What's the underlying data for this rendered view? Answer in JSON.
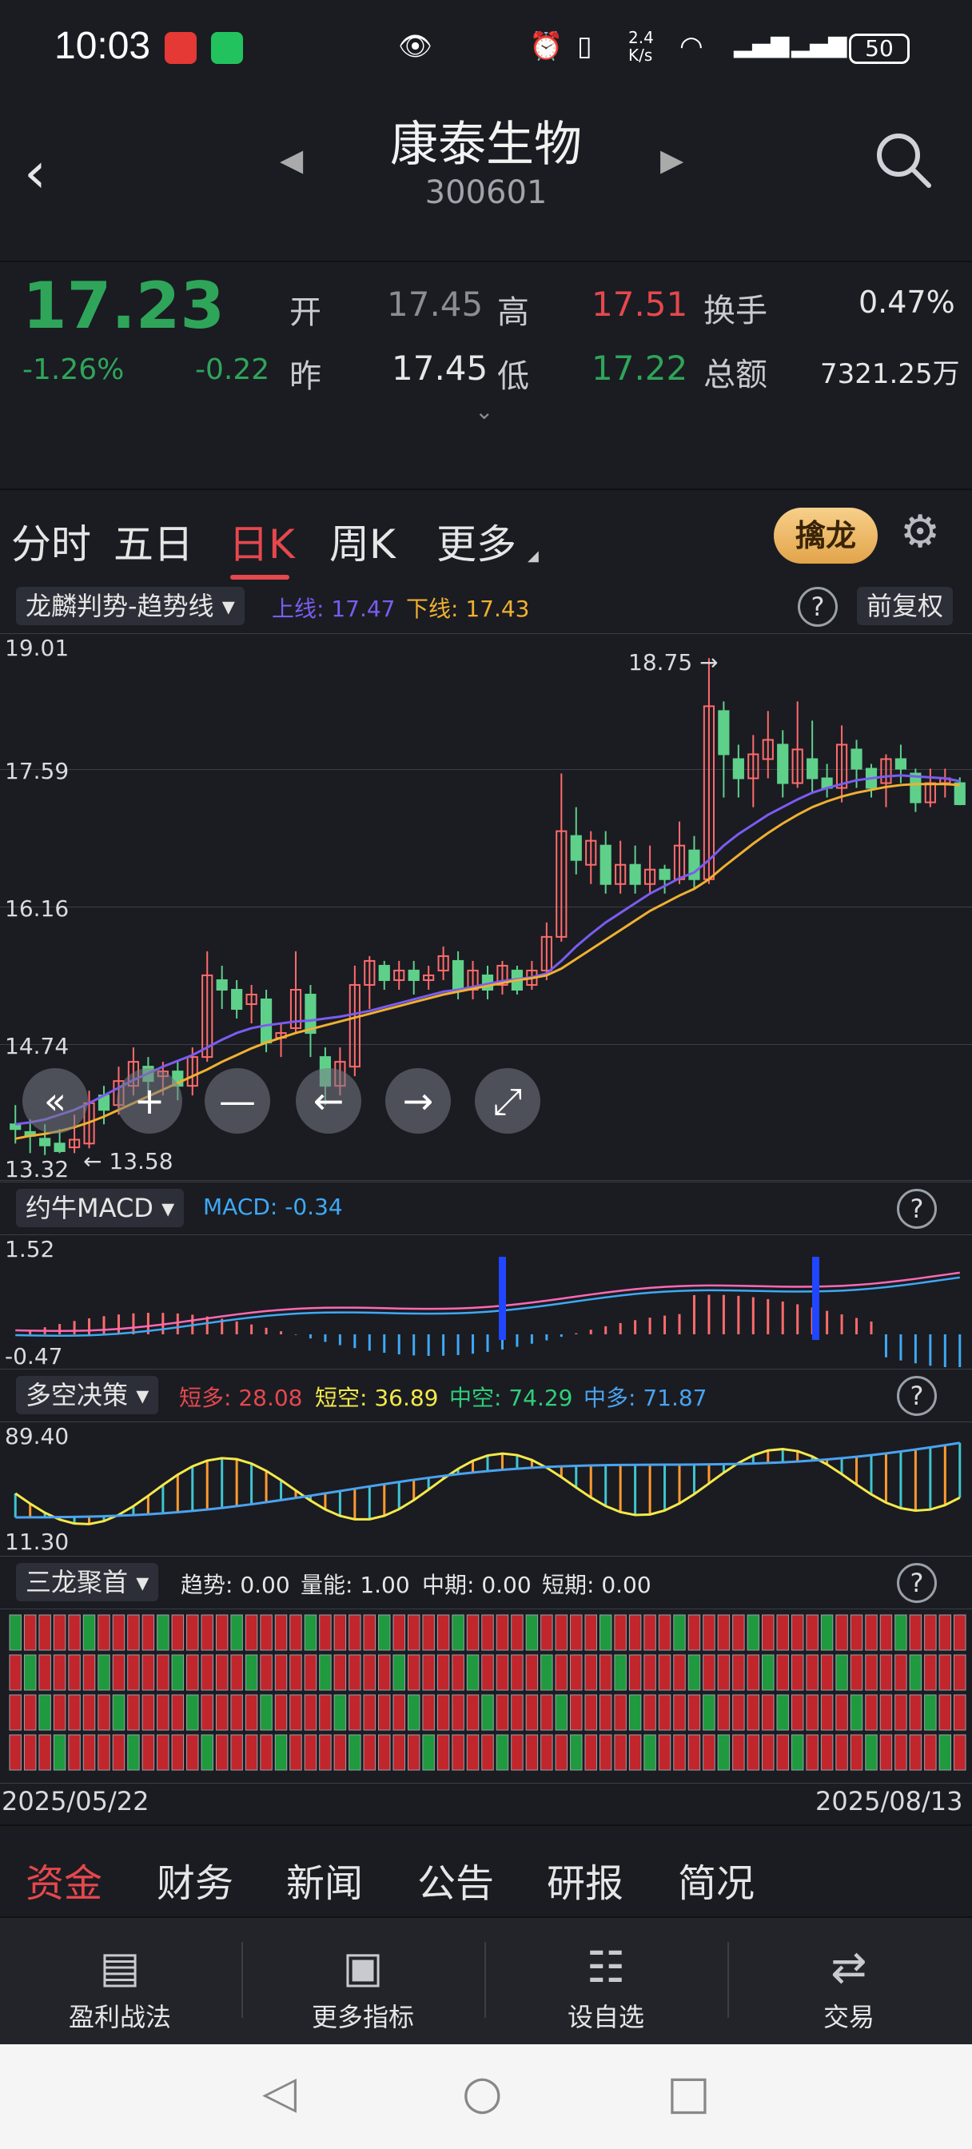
{
  "status_bar": {
    "time": "10:03",
    "network_speed": "2.4\nK/s",
    "battery": "50"
  },
  "header": {
    "stock_name": "康泰生物",
    "stock_code": "300601"
  },
  "quote": {
    "price": "17.23",
    "change_pct": "-1.26%",
    "change": "-0.22",
    "open_label": "开",
    "open": "17.45",
    "high_label": "高",
    "high": "17.51",
    "turnover_label": "换手",
    "turnover": "0.47%",
    "prev_label": "昨",
    "prev": "17.45",
    "low_label": "低",
    "low": "17.22",
    "amount_label": "总额",
    "amount": "7321.25万"
  },
  "period_tabs": [
    "分时",
    "五日",
    "日K",
    "周K",
    "更多"
  ],
  "active_tab": "日K",
  "qinlong_button": "擒龙",
  "main_indicator": {
    "name": "龙麟判势-趋势线",
    "upper": "上线: 17.47",
    "lower": "下线: 17.43",
    "adjust": "前复权",
    "help": "?",
    "y_ticks": [
      "19.01",
      "17.59",
      "16.16",
      "14.74",
      "13.32"
    ],
    "max_label": "18.75",
    "min_label": "13.58"
  },
  "macd": {
    "name": "约牛MACD",
    "value": "MACD: -0.34",
    "y_ticks": [
      "1.52",
      "-0.47"
    ],
    "help": "?"
  },
  "duokong": {
    "name": "多空决策",
    "short_long": "短多: 28.08",
    "short_short": "短空: 36.89",
    "mid_short": "中空: 74.29",
    "mid_long": "中多: 71.87",
    "y_ticks": [
      "89.40",
      "11.30"
    ],
    "help": "?"
  },
  "sanlong": {
    "name": "三龙聚首",
    "trend": "趋势: 0.00",
    "volume": "量能: 1.00",
    "mid": "中期: 0.00",
    "short": "短期: 0.00",
    "help": "?"
  },
  "date_range": {
    "start": "2025/05/22",
    "end": "2025/08/13"
  },
  "news_tabs": [
    "资金",
    "财务",
    "新闻",
    "公告",
    "研报",
    "简况"
  ],
  "active_news_tab": "资金",
  "bottom_nav": [
    {
      "label": "盈利战法",
      "icon": "strategy-icon"
    },
    {
      "label": "更多指标",
      "icon": "chart-icon"
    },
    {
      "label": "设自选",
      "icon": "watchlist-icon"
    },
    {
      "label": "交易",
      "icon": "trade-icon"
    }
  ],
  "chart_data": {
    "type": "candlestick",
    "x_start": "2025/05/22",
    "x_end": "2025/08/13",
    "ylim": [
      13.32,
      19.01
    ],
    "y_ticks": [
      19.01,
      17.59,
      16.16,
      14.74,
      13.32
    ],
    "annotations": [
      {
        "label": "18.75",
        "value": 18.75
      },
      {
        "label": "13.58",
        "value": 13.58
      }
    ],
    "candles": [
      [
        13.9,
        13.85,
        14.1,
        13.7
      ],
      [
        13.82,
        13.78,
        13.95,
        13.6
      ],
      [
        13.75,
        13.68,
        13.9,
        13.58
      ],
      [
        13.7,
        13.62,
        13.85,
        13.6
      ],
      [
        13.66,
        13.74,
        14.0,
        13.6
      ],
      [
        13.7,
        14.12,
        14.25,
        13.65
      ],
      [
        14.2,
        14.05,
        14.3,
        13.9
      ],
      [
        14.1,
        14.35,
        14.5,
        14.0
      ],
      [
        14.3,
        14.55,
        14.7,
        14.2
      ],
      [
        14.5,
        14.35,
        14.6,
        14.2
      ],
      [
        14.4,
        14.45,
        14.55,
        14.2
      ],
      [
        14.45,
        14.3,
        14.55,
        14.15
      ],
      [
        14.3,
        14.6,
        14.7,
        14.2
      ],
      [
        14.6,
        15.45,
        15.7,
        14.55
      ],
      [
        15.4,
        15.3,
        15.55,
        15.1
      ],
      [
        15.3,
        15.1,
        15.4,
        15.0
      ],
      [
        15.15,
        15.25,
        15.35,
        14.95
      ],
      [
        15.2,
        14.75,
        15.3,
        14.65
      ],
      [
        14.8,
        14.85,
        14.95,
        14.6
      ],
      [
        14.9,
        15.3,
        15.7,
        14.85
      ],
      [
        15.25,
        14.85,
        15.35,
        14.6
      ],
      [
        14.6,
        14.3,
        14.7,
        14.1
      ],
      [
        14.3,
        14.55,
        14.7,
        14.2
      ],
      [
        14.5,
        15.35,
        15.55,
        14.4
      ],
      [
        15.35,
        15.6,
        15.65,
        15.1
      ],
      [
        15.55,
        15.4,
        15.6,
        15.3
      ],
      [
        15.4,
        15.5,
        15.6,
        15.3
      ],
      [
        15.5,
        15.4,
        15.6,
        15.25
      ],
      [
        15.4,
        15.45,
        15.55,
        15.3
      ],
      [
        15.5,
        15.65,
        15.75,
        15.4
      ],
      [
        15.6,
        15.3,
        15.7,
        15.2
      ],
      [
        15.3,
        15.5,
        15.6,
        15.2
      ],
      [
        15.45,
        15.3,
        15.55,
        15.2
      ],
      [
        15.35,
        15.55,
        15.6,
        15.25
      ],
      [
        15.5,
        15.3,
        15.55,
        15.25
      ],
      [
        15.35,
        15.5,
        15.6,
        15.3
      ],
      [
        15.5,
        15.85,
        16.0,
        15.4
      ],
      [
        15.85,
        16.95,
        17.55,
        15.8
      ],
      [
        16.9,
        16.65,
        17.2,
        16.5
      ],
      [
        16.6,
        16.85,
        16.95,
        16.4
      ],
      [
        16.8,
        16.4,
        16.95,
        16.3
      ],
      [
        16.4,
        16.6,
        16.85,
        16.3
      ],
      [
        16.6,
        16.4,
        16.8,
        16.3
      ],
      [
        16.4,
        16.55,
        16.8,
        16.3
      ],
      [
        16.55,
        16.45,
        16.6,
        16.3
      ],
      [
        16.45,
        16.8,
        17.05,
        16.4
      ],
      [
        16.75,
        16.45,
        16.9,
        16.35
      ],
      [
        16.45,
        18.25,
        18.75,
        16.4
      ],
      [
        18.2,
        17.75,
        18.3,
        17.3
      ],
      [
        17.7,
        17.5,
        17.85,
        17.3
      ],
      [
        17.5,
        17.75,
        17.95,
        17.2
      ],
      [
        17.7,
        17.9,
        18.2,
        17.5
      ],
      [
        17.85,
        17.45,
        18.0,
        17.3
      ],
      [
        17.45,
        17.8,
        18.3,
        17.4
      ],
      [
        17.7,
        17.5,
        18.1,
        17.35
      ],
      [
        17.5,
        17.4,
        17.65,
        17.3
      ],
      [
        17.4,
        17.85,
        18.05,
        17.25
      ],
      [
        17.8,
        17.6,
        17.9,
        17.4
      ],
      [
        17.6,
        17.4,
        17.65,
        17.3
      ],
      [
        17.45,
        17.7,
        17.75,
        17.2
      ],
      [
        17.7,
        17.6,
        17.85,
        17.45
      ],
      [
        17.55,
        17.25,
        17.6,
        17.15
      ],
      [
        17.25,
        17.45,
        17.6,
        17.2
      ],
      [
        17.45,
        17.5,
        17.6,
        17.3
      ],
      [
        17.45,
        17.23,
        17.51,
        17.22
      ]
    ],
    "ma_upper": [
      13.9,
      13.92,
      13.95,
      14.0,
      14.05,
      14.12,
      14.2,
      14.28,
      14.36,
      14.43,
      14.5,
      14.56,
      14.62,
      14.7,
      14.78,
      14.85,
      14.9,
      14.93,
      14.95,
      14.97,
      14.98,
      15.0,
      15.02,
      15.05,
      15.08,
      15.12,
      15.16,
      15.2,
      15.24,
      15.28,
      15.3,
      15.33,
      15.36,
      15.39,
      15.41,
      15.43,
      15.47,
      15.6,
      15.75,
      15.88,
      16.0,
      16.1,
      16.2,
      16.3,
      16.38,
      16.46,
      16.52,
      16.65,
      16.8,
      16.92,
      17.02,
      17.12,
      17.2,
      17.28,
      17.35,
      17.4,
      17.44,
      17.48,
      17.5,
      17.52,
      17.53,
      17.52,
      17.51,
      17.5,
      17.47
    ],
    "ma_lower": [
      13.75,
      13.78,
      13.8,
      13.83,
      13.87,
      13.92,
      13.98,
      14.05,
      14.12,
      14.19,
      14.26,
      14.33,
      14.4,
      14.47,
      14.55,
      14.62,
      14.69,
      14.75,
      14.8,
      14.85,
      14.89,
      14.93,
      14.97,
      15.01,
      15.05,
      15.09,
      15.13,
      15.17,
      15.21,
      15.25,
      15.28,
      15.31,
      15.34,
      15.37,
      15.4,
      15.42,
      15.45,
      15.52,
      15.62,
      15.72,
      15.82,
      15.92,
      16.02,
      16.12,
      16.2,
      16.28,
      16.35,
      16.45,
      16.58,
      16.7,
      16.82,
      16.93,
      17.03,
      17.12,
      17.2,
      17.26,
      17.31,
      17.35,
      17.38,
      17.41,
      17.43,
      17.44,
      17.44,
      17.44,
      17.43
    ]
  }
}
